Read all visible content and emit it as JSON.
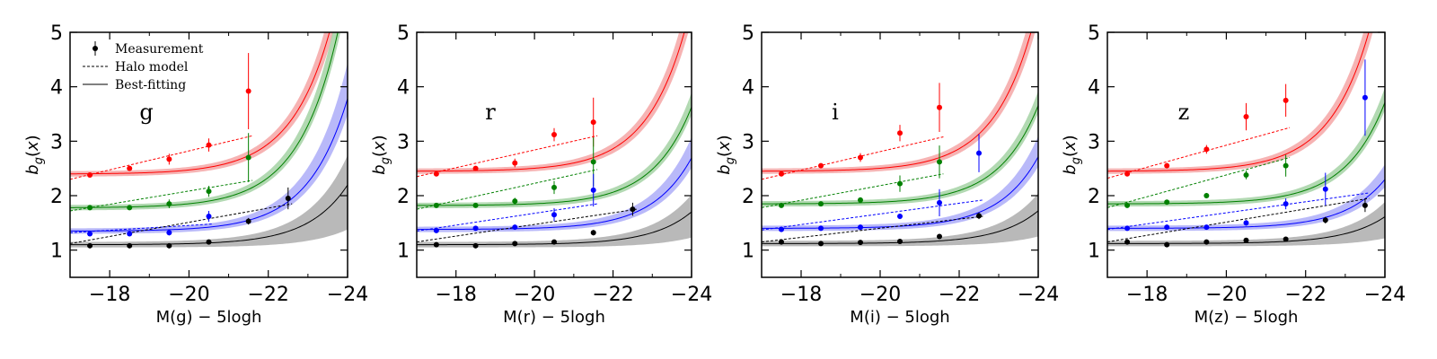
{
  "chart_data": [
    {
      "type": "line",
      "band": "g",
      "xlabel": "M(g) − 5logh",
      "ylabel": "b_g(x)",
      "xlim": [
        -17,
        -24
      ],
      "ylim": [
        0.5,
        5
      ],
      "xticks": [
        -18,
        -20,
        -22,
        -24
      ],
      "xtick_labels": [
        "−18",
        "−20",
        "−22",
        "−24"
      ],
      "yticks": [
        1,
        2,
        3,
        4,
        5
      ],
      "ytick_labels": [
        "1",
        "2",
        "3",
        "4",
        "5"
      ],
      "legend": [
        "Measurement",
        "Halo model",
        "Best-fitting"
      ],
      "series": [
        {
          "name": "red",
          "color": "#ff0000",
          "band_fill": "#f4a0a0",
          "base": 2.4,
          "alpha": 0.00375,
          "M0": -17.0,
          "band_lo": [
            0.92,
            0.2
          ],
          "band_hi": [
            1.12,
            0.4
          ],
          "x": [
            -17.5,
            -18.5,
            -19.5,
            -20.5,
            -21.5
          ],
          "y": [
            2.38,
            2.5,
            2.67,
            2.93,
            3.92
          ],
          "yerr": [
            0.03,
            0.04,
            0.1,
            0.12,
            0.7
          ],
          "halo_x": [
            -17.0,
            -21.6
          ],
          "halo_y": [
            2.3,
            3.1
          ]
        },
        {
          "name": "green",
          "color": "#008000",
          "band_fill": "#9fd09f",
          "base": 1.78,
          "alpha": 0.00376,
          "M0": -17.0,
          "band_lo": [
            0.95,
            0.2
          ],
          "band_hi": [
            1.12,
            0.4
          ],
          "x": [
            -17.5,
            -18.5,
            -19.5,
            -20.5,
            -21.5
          ],
          "y": [
            1.78,
            1.78,
            1.85,
            2.08,
            2.7
          ],
          "yerr": [
            0.03,
            0.04,
            0.08,
            0.1,
            0.45
          ],
          "halo_x": [
            -17.0,
            -21.6
          ],
          "halo_y": [
            1.72,
            2.28
          ]
        },
        {
          "name": "blue",
          "color": "#0000ff",
          "band_fill": "#a8a8f8",
          "base": 1.35,
          "alpha": 0.00222,
          "M0": -17.0,
          "band_lo": [
            0.9,
            0.2
          ],
          "band_hi": [
            1.25,
            0.4
          ],
          "x": [
            -17.5,
            -18.5,
            -19.5,
            -20.5
          ],
          "y": [
            1.3,
            1.3,
            1.32,
            1.62
          ],
          "yerr": [
            0.03,
            0.04,
            0.05,
            0.1
          ],
          "halo_x": [
            -17.0,
            -20.6
          ],
          "halo_y": [
            1.32,
            1.48
          ]
        },
        {
          "name": "black",
          "color": "#000000",
          "band_fill": "#a8a8a8",
          "base": 1.1,
          "alpha": 0.001,
          "M0": -17.0,
          "band_lo": [
            0.3,
            0.2
          ],
          "band_hi": [
            1.45,
            0.3
          ],
          "x": [
            -17.5,
            -18.5,
            -19.5,
            -20.5,
            -21.5,
            -22.5
          ],
          "y": [
            1.08,
            1.08,
            1.08,
            1.15,
            1.53,
            1.95
          ],
          "yerr": [
            0.02,
            0.02,
            0.03,
            0.04,
            0.06,
            0.2
          ],
          "halo_x": [
            -17.0,
            -22.6
          ],
          "halo_y": [
            1.12,
            1.85
          ]
        }
      ]
    },
    {
      "type": "line",
      "band": "r",
      "xlabel": "M(r) − 5logh",
      "ylabel": "b_g(x)",
      "xlim": [
        -17,
        -24
      ],
      "ylim": [
        0.5,
        5
      ],
      "xticks": [
        -18,
        -20,
        -22,
        -24
      ],
      "xtick_labels": [
        "−18",
        "−20",
        "−22",
        "−24"
      ],
      "yticks": [
        1,
        2,
        3,
        4,
        5
      ],
      "ytick_labels": [
        "1",
        "2",
        "3",
        "4",
        "5"
      ],
      "series": [
        {
          "name": "red",
          "color": "#ff0000",
          "band_fill": "#f4a0a0",
          "base": 2.45,
          "alpha": 0.0028,
          "M0": -17.0,
          "band_lo": [
            0.92,
            0.2
          ],
          "band_hi": [
            1.12,
            0.4
          ],
          "x": [
            -17.5,
            -18.5,
            -19.5,
            -20.5,
            -21.5
          ],
          "y": [
            2.4,
            2.5,
            2.6,
            3.12,
            3.35
          ],
          "yerr": [
            0.03,
            0.04,
            0.08,
            0.12,
            0.45
          ],
          "halo_x": [
            -17.0,
            -21.6
          ],
          "halo_y": [
            2.35,
            3.1
          ]
        },
        {
          "name": "green",
          "color": "#008000",
          "band_fill": "#9fd09f",
          "base": 1.82,
          "alpha": 0.00165,
          "M0": -17.0,
          "band_lo": [
            0.95,
            0.2
          ],
          "band_hi": [
            1.12,
            0.4
          ],
          "x": [
            -17.5,
            -18.5,
            -19.5,
            -20.5,
            -21.5
          ],
          "y": [
            1.82,
            1.82,
            1.9,
            2.15,
            2.62
          ],
          "yerr": [
            0.03,
            0.04,
            0.06,
            0.12,
            0.45
          ],
          "halo_x": [
            -17.0,
            -21.6
          ],
          "halo_y": [
            1.75,
            2.48
          ]
        },
        {
          "name": "blue",
          "color": "#0000ff",
          "band_fill": "#a8a8f8",
          "base": 1.38,
          "alpha": 0.0012,
          "M0": -17.0,
          "band_lo": [
            0.9,
            0.2
          ],
          "band_hi": [
            1.25,
            0.4
          ],
          "x": [
            -17.5,
            -18.5,
            -19.5,
            -20.5,
            -21.5
          ],
          "y": [
            1.36,
            1.4,
            1.42,
            1.65,
            2.1
          ],
          "yerr": [
            0.03,
            0.03,
            0.04,
            0.12,
            0.3
          ],
          "halo_x": [
            -17.0,
            -21.6
          ],
          "halo_y": [
            1.35,
            1.85
          ]
        },
        {
          "name": "black",
          "color": "#000000",
          "band_fill": "#a8a8a8",
          "base": 1.1,
          "alpha": 0.00055,
          "M0": -17.0,
          "band_lo": [
            0.3,
            0.2
          ],
          "band_hi": [
            1.45,
            0.3
          ],
          "x": [
            -17.5,
            -18.5,
            -19.5,
            -20.5,
            -21.5,
            -22.5
          ],
          "y": [
            1.1,
            1.08,
            1.12,
            1.15,
            1.32,
            1.75
          ],
          "yerr": [
            0.02,
            0.02,
            0.03,
            0.04,
            0.05,
            0.12
          ],
          "halo_x": [
            -17.0,
            -22.6
          ],
          "halo_y": [
            1.15,
            1.75
          ]
        }
      ]
    },
    {
      "type": "line",
      "band": "i",
      "xlabel": "M(i) − 5logh",
      "ylabel": "b_g(x)",
      "xlim": [
        -17,
        -24
      ],
      "ylim": [
        0.5,
        5
      ],
      "xticks": [
        -18,
        -20,
        -22,
        -24
      ],
      "xtick_labels": [
        "−18",
        "−20",
        "−22",
        "−24"
      ],
      "yticks": [
        1,
        2,
        3,
        4,
        5
      ],
      "ytick_labels": [
        "1",
        "2",
        "3",
        "4",
        "5"
      ],
      "series": [
        {
          "name": "red",
          "color": "#ff0000",
          "band_fill": "#f4a0a0",
          "base": 2.45,
          "alpha": 0.0028,
          "M0": -17.0,
          "band_lo": [
            0.92,
            0.2
          ],
          "band_hi": [
            1.12,
            0.4
          ],
          "x": [
            -17.5,
            -18.5,
            -19.5,
            -20.5,
            -21.5
          ],
          "y": [
            2.4,
            2.55,
            2.7,
            3.15,
            3.62
          ],
          "yerr": [
            0.03,
            0.04,
            0.08,
            0.15,
            0.45
          ],
          "halo_x": [
            -17.0,
            -21.6
          ],
          "halo_y": [
            2.3,
            3.08
          ]
        },
        {
          "name": "green",
          "color": "#008000",
          "band_fill": "#9fd09f",
          "base": 1.85,
          "alpha": 0.00165,
          "M0": -17.0,
          "band_lo": [
            0.95,
            0.2
          ],
          "band_hi": [
            1.12,
            0.4
          ],
          "x": [
            -17.5,
            -18.5,
            -19.5,
            -20.5,
            -21.5
          ],
          "y": [
            1.82,
            1.85,
            1.92,
            2.22,
            2.62
          ],
          "yerr": [
            0.03,
            0.03,
            0.05,
            0.15,
            0.3
          ],
          "halo_x": [
            -17.0,
            -21.6
          ],
          "halo_y": [
            1.78,
            2.4
          ]
        },
        {
          "name": "blue",
          "color": "#0000ff",
          "band_fill": "#a8a8f8",
          "base": 1.4,
          "alpha": 0.0012,
          "M0": -17.0,
          "band_lo": [
            0.9,
            0.2
          ],
          "band_hi": [
            1.25,
            0.4
          ],
          "x": [
            -17.5,
            -18.5,
            -19.5,
            -20.5,
            -21.5,
            -22.5
          ],
          "y": [
            1.38,
            1.4,
            1.42,
            1.62,
            1.87,
            2.78
          ],
          "yerr": [
            0.03,
            0.03,
            0.04,
            0.05,
            0.25,
            0.35
          ],
          "halo_x": [
            -17.0,
            -22.6
          ],
          "halo_y": [
            1.37,
            1.92
          ]
        },
        {
          "name": "black",
          "color": "#000000",
          "band_fill": "#a8a8a8",
          "base": 1.12,
          "alpha": 0.00055,
          "M0": -17.0,
          "band_lo": [
            0.3,
            0.2
          ],
          "band_hi": [
            1.45,
            0.3
          ],
          "x": [
            -17.5,
            -18.5,
            -19.5,
            -20.5,
            -21.5,
            -22.5
          ],
          "y": [
            1.15,
            1.12,
            1.14,
            1.16,
            1.25,
            1.63
          ],
          "yerr": [
            0.02,
            0.02,
            0.03,
            0.03,
            0.04,
            0.06
          ],
          "halo_x": [
            -17.0,
            -22.6
          ],
          "halo_y": [
            1.15,
            1.62
          ]
        }
      ]
    },
    {
      "type": "line",
      "band": "z",
      "xlabel": "M(z) − 5logh",
      "ylabel": "b_g(x)",
      "xlim": [
        -17,
        -24
      ],
      "ylim": [
        0.5,
        5
      ],
      "xticks": [
        -18,
        -20,
        -22,
        -24
      ],
      "xtick_labels": [
        "−18",
        "−20",
        "−22",
        "−24"
      ],
      "yticks": [
        1,
        2,
        3,
        4,
        5
      ],
      "ytick_labels": [
        "1",
        "2",
        "3",
        "4",
        "5"
      ],
      "series": [
        {
          "name": "red",
          "color": "#ff0000",
          "band_fill": "#f4a0a0",
          "base": 2.45,
          "alpha": 0.0035,
          "M0": -17.0,
          "band_lo": [
            0.92,
            0.2
          ],
          "band_hi": [
            1.12,
            0.4
          ],
          "x": [
            -17.5,
            -18.5,
            -19.5,
            -20.5,
            -21.5
          ],
          "y": [
            2.4,
            2.55,
            2.85,
            3.45,
            3.75
          ],
          "yerr": [
            0.03,
            0.05,
            0.08,
            0.25,
            0.3
          ],
          "halo_x": [
            -17.0,
            -21.6
          ],
          "halo_y": [
            2.32,
            3.25
          ]
        },
        {
          "name": "green",
          "color": "#008000",
          "band_fill": "#9fd09f",
          "base": 1.85,
          "alpha": 0.0017,
          "M0": -17.0,
          "band_lo": [
            0.95,
            0.2
          ],
          "band_hi": [
            1.12,
            0.4
          ],
          "x": [
            -17.5,
            -18.5,
            -19.5,
            -20.5,
            -21.5
          ],
          "y": [
            1.82,
            1.88,
            2.0,
            2.38,
            2.55
          ],
          "yerr": [
            0.03,
            0.04,
            0.05,
            0.08,
            0.2
          ],
          "halo_x": [
            -17.0,
            -21.6
          ],
          "halo_y": [
            1.78,
            2.7
          ]
        },
        {
          "name": "blue",
          "color": "#0000ff",
          "band_fill": "#a8a8f8",
          "base": 1.4,
          "alpha": 0.00082,
          "M0": -17.0,
          "band_lo": [
            0.9,
            0.2
          ],
          "band_hi": [
            1.25,
            0.4
          ],
          "x": [
            -17.5,
            -18.5,
            -19.5,
            -20.5,
            -21.5,
            -22.5,
            -23.5
          ],
          "y": [
            1.4,
            1.42,
            1.42,
            1.5,
            1.85,
            2.12,
            3.8
          ],
          "yerr": [
            0.03,
            0.03,
            0.03,
            0.05,
            0.1,
            0.3,
            0.7
          ],
          "halo_x": [
            -17.0,
            -23.6
          ],
          "halo_y": [
            1.38,
            2.05
          ]
        },
        {
          "name": "black",
          "color": "#000000",
          "band_fill": "#a8a8a8",
          "base": 1.12,
          "alpha": 0.00045,
          "M0": -17.0,
          "band_lo": [
            0.3,
            0.2
          ],
          "band_hi": [
            1.45,
            0.3
          ],
          "x": [
            -17.5,
            -18.5,
            -19.5,
            -20.5,
            -21.5,
            -22.5,
            -23.5
          ],
          "y": [
            1.15,
            1.1,
            1.15,
            1.18,
            1.2,
            1.55,
            1.82
          ],
          "yerr": [
            0.02,
            0.02,
            0.03,
            0.03,
            0.04,
            0.06,
            0.12
          ],
          "halo_x": [
            -17.0,
            -23.6
          ],
          "halo_y": [
            1.15,
            1.95
          ]
        }
      ]
    }
  ]
}
